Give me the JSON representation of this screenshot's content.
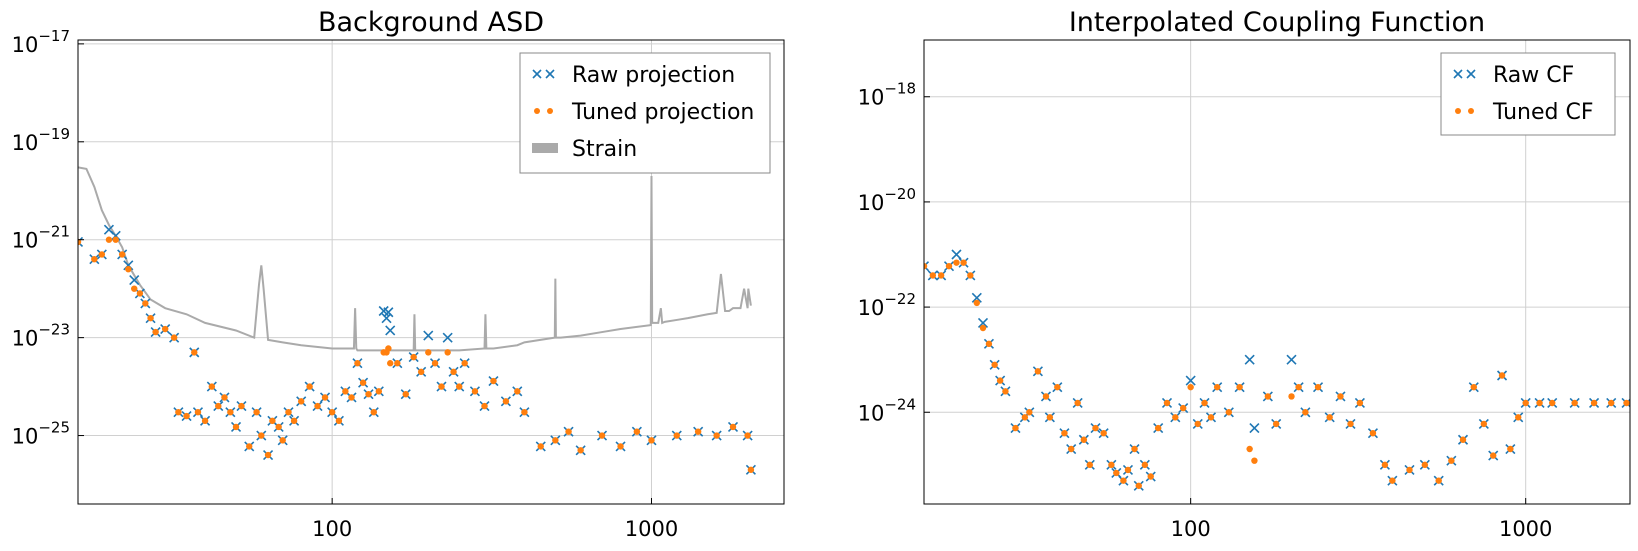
{
  "colors": {
    "raw": "#1f77b4",
    "tuned": "#ff7f0e",
    "strain": "#aaaaaa"
  },
  "chart_data": [
    {
      "type": "scatter",
      "title": "Background ASD",
      "xscale": "log",
      "yscale": "log",
      "xlim": [
        16,
        2600
      ],
      "ylim": [
        4e-27,
        1.2e-17
      ],
      "xticks": [
        100,
        1000
      ],
      "xtick_labels": [
        "100",
        "1000"
      ],
      "yticks": [
        {
          "base": "10",
          "exp": "−17",
          "value": 1e-17
        },
        {
          "base": "10",
          "exp": "−19",
          "value": 1e-19
        },
        {
          "base": "10",
          "exp": "−21",
          "value": 1e-21
        },
        {
          "base": "10",
          "exp": "−23",
          "value": 1e-23
        },
        {
          "base": "10",
          "exp": "−25",
          "value": 1e-25
        }
      ],
      "grid": true,
      "legend_position": "top-right",
      "legend": [
        {
          "label": "Raw projection",
          "marker": "x",
          "color": "#1f77b4"
        },
        {
          "label": "Tuned projection",
          "marker": "dot",
          "color": "#ff7f0e"
        },
        {
          "label": "Strain",
          "marker": "band",
          "color": "#aaaaaa"
        }
      ],
      "series": [
        {
          "name": "Strain",
          "kind": "line",
          "x": [
            16,
            17,
            18,
            19,
            20,
            21,
            22,
            23,
            25,
            27,
            30,
            35,
            40,
            50,
            57,
            59,
            60,
            61,
            63,
            70,
            80,
            100,
            117,
            118,
            119,
            120,
            150,
            170,
            180,
            181,
            182,
            185,
            200,
            250,
            300,
            302,
            304,
            320,
            380,
            400,
            498,
            500,
            502,
            520,
            600,
            700,
            800,
            995,
            1000,
            1005,
            1050,
            1070,
            1080,
            1100,
            1200,
            1300,
            1500,
            1600,
            1650,
            1700,
            1750,
            1800,
            1900,
            1950,
            2000,
            2010,
            2048
          ],
          "y": [
            3e-20,
            2.8e-20,
            1.2e-20,
            4e-21,
            2e-21,
            1.2e-21,
            7e-22,
            3e-22,
            1.2e-22,
            6e-23,
            4e-23,
            3e-23,
            2e-23,
            1.4e-23,
            1e-23,
            1.2e-22,
            3e-22,
            1e-22,
            9e-24,
            8e-24,
            7e-24,
            6e-24,
            6e-24,
            4e-23,
            6e-24,
            5.5e-24,
            5.5e-24,
            5.5e-24,
            5.5e-24,
            3e-23,
            5.5e-24,
            5.5e-24,
            5.5e-24,
            5.5e-24,
            6e-24,
            3e-23,
            6e-24,
            6e-24,
            7e-24,
            8e-24,
            1e-23,
            1.6e-22,
            1e-23,
            1e-23,
            1.1e-23,
            1.3e-23,
            1.5e-23,
            1.8e-23,
            2e-20,
            2e-23,
            2e-23,
            4e-23,
            2e-23,
            2.1e-23,
            2.3e-23,
            2.5e-23,
            3e-23,
            3.2e-23,
            2e-22,
            3.5e-23,
            3.5e-23,
            4e-23,
            4e-23,
            1e-22,
            4e-23,
            1e-22,
            4.5e-23
          ]
        },
        {
          "name": "Raw projection",
          "kind": "scatter",
          "marker": "x",
          "x": [
            16,
            18,
            19,
            20,
            21,
            22,
            23,
            24,
            25,
            26,
            27,
            28,
            30,
            32,
            33,
            35,
            37,
            38,
            40,
            42,
            44,
            46,
            48,
            50,
            52,
            55,
            58,
            60,
            63,
            65,
            68,
            70,
            73,
            76,
            80,
            85,
            90,
            95,
            100,
            105,
            110,
            115,
            120,
            125,
            130,
            135,
            140,
            145,
            148,
            150,
            152,
            160,
            170,
            180,
            190,
            200,
            210,
            220,
            230,
            240,
            250,
            260,
            280,
            300,
            320,
            350,
            380,
            400,
            450,
            500,
            550,
            600,
            700,
            800,
            900,
            1000,
            1200,
            1400,
            1600,
            1800,
            2000,
            2048
          ],
          "y": [
            9e-22,
            4e-22,
            5e-22,
            1.6e-21,
            1.2e-21,
            5e-22,
            3e-22,
            1.5e-22,
            8e-23,
            5e-23,
            2.5e-23,
            1.3e-23,
            1.5e-23,
            1e-23,
            3e-25,
            2.5e-25,
            5e-24,
            3e-25,
            2e-25,
            1e-24,
            4e-25,
            6e-25,
            3e-25,
            1.5e-25,
            4e-25,
            6e-26,
            3e-25,
            1e-25,
            4e-26,
            2e-25,
            1.5e-25,
            8e-26,
            3e-25,
            2e-25,
            5e-25,
            1e-24,
            4e-25,
            6e-25,
            3e-25,
            2e-25,
            8e-25,
            6e-25,
            3e-24,
            1.2e-24,
            7e-25,
            3e-25,
            8e-25,
            3.5e-23,
            2.5e-23,
            3.3e-23,
            1.4e-23,
            3e-24,
            7e-25,
            4e-24,
            2e-24,
            1.1e-23,
            3e-24,
            1e-24,
            1e-23,
            2e-24,
            1e-24,
            3e-24,
            8e-25,
            4e-25,
            1.3e-24,
            5e-25,
            8e-25,
            3e-25,
            6e-26,
            8e-26,
            1.2e-25,
            5e-26,
            1e-25,
            6e-26,
            1.2e-25,
            8e-26,
            1e-25,
            1.2e-25,
            1e-25,
            1.5e-25,
            1e-25,
            2e-26
          ]
        },
        {
          "name": "Tuned projection",
          "kind": "scatter",
          "marker": "dot",
          "x": [
            16,
            18,
            19,
            20,
            21,
            22,
            23,
            24,
            25,
            26,
            27,
            28,
            30,
            32,
            33,
            35,
            37,
            38,
            40,
            42,
            44,
            46,
            48,
            50,
            52,
            55,
            58,
            60,
            63,
            65,
            68,
            70,
            73,
            76,
            80,
            85,
            90,
            95,
            100,
            105,
            110,
            115,
            120,
            125,
            130,
            135,
            140,
            145,
            148,
            150,
            152,
            160,
            170,
            180,
            190,
            200,
            210,
            220,
            230,
            240,
            250,
            260,
            280,
            300,
            320,
            350,
            380,
            400,
            450,
            500,
            550,
            600,
            700,
            800,
            900,
            1000,
            1200,
            1400,
            1600,
            1800,
            2000,
            2048
          ],
          "y": [
            9e-22,
            4e-22,
            5e-22,
            1e-21,
            1e-21,
            5e-22,
            2.5e-22,
            1e-22,
            8e-23,
            5e-23,
            2.5e-23,
            1.3e-23,
            1.5e-23,
            1e-23,
            3e-25,
            2.5e-25,
            5e-24,
            3e-25,
            2e-25,
            1e-24,
            4e-25,
            6e-25,
            3e-25,
            1.5e-25,
            4e-25,
            6e-26,
            3e-25,
            1e-25,
            4e-26,
            2e-25,
            1.5e-25,
            8e-26,
            3e-25,
            2e-25,
            5e-25,
            1e-24,
            4e-25,
            6e-25,
            3e-25,
            2e-25,
            8e-25,
            6e-25,
            3e-24,
            1.2e-24,
            7e-25,
            3e-25,
            8e-25,
            5e-24,
            5e-24,
            6e-24,
            3e-24,
            3e-24,
            7e-25,
            4e-24,
            2e-24,
            5e-24,
            3e-24,
            1e-24,
            5e-24,
            2e-24,
            1e-24,
            3e-24,
            8e-25,
            4e-25,
            1.3e-24,
            5e-25,
            8e-25,
            3e-25,
            6e-26,
            8e-26,
            1.2e-25,
            5e-26,
            1e-25,
            6e-26,
            1.2e-25,
            8e-26,
            1e-25,
            1.2e-25,
            1e-25,
            1.5e-25,
            1e-25,
            2e-26
          ]
        }
      ]
    },
    {
      "type": "scatter",
      "title": "Interpolated Coupling Function",
      "xscale": "log",
      "yscale": "log",
      "xlim": [
        16,
        2048
      ],
      "ylim": [
        1.8e-26,
        1.2e-17
      ],
      "xticks": [
        100,
        1000
      ],
      "xtick_labels": [
        "100",
        "1000"
      ],
      "yticks": [
        {
          "base": "10",
          "exp": "−18",
          "value": 1e-18
        },
        {
          "base": "10",
          "exp": "−20",
          "value": 1e-20
        },
        {
          "base": "10",
          "exp": "−22",
          "value": 1e-22
        },
        {
          "base": "10",
          "exp": "−24",
          "value": 1e-24
        }
      ],
      "grid": true,
      "legend_position": "top-right",
      "legend": [
        {
          "label": "Raw CF",
          "marker": "x",
          "color": "#1f77b4"
        },
        {
          "label": "Tuned CF",
          "marker": "dot",
          "color": "#ff7f0e"
        }
      ],
      "series": [
        {
          "name": "Raw CF",
          "kind": "scatter",
          "marker": "x",
          "x": [
            16,
            17,
            18,
            19,
            20,
            21,
            22,
            23,
            24,
            25,
            26,
            27,
            28,
            30,
            32,
            33,
            35,
            37,
            38,
            40,
            42,
            44,
            46,
            48,
            50,
            52,
            55,
            58,
            60,
            63,
            65,
            68,
            70,
            73,
            76,
            80,
            85,
            90,
            95,
            100,
            105,
            110,
            115,
            120,
            130,
            140,
            150,
            155,
            170,
            180,
            200,
            210,
            220,
            240,
            260,
            280,
            300,
            320,
            350,
            380,
            400,
            450,
            500,
            550,
            600,
            650,
            700,
            750,
            800,
            850,
            900,
            950,
            1000,
            1100,
            1200,
            1400,
            1600,
            1800,
            2000
          ],
          "y": [
            6e-22,
            4e-22,
            4e-22,
            6e-22,
            1e-21,
            7e-22,
            4e-22,
            1.5e-22,
            5e-23,
            2e-23,
            8e-24,
            4e-24,
            2.5e-24,
            5e-25,
            8e-25,
            1e-24,
            6e-24,
            2e-24,
            8e-25,
            3e-24,
            4e-25,
            2e-25,
            1.5e-24,
            3e-25,
            1e-25,
            5e-25,
            4e-25,
            1e-25,
            7e-26,
            5e-26,
            8e-26,
            2e-25,
            4e-26,
            1e-25,
            6e-26,
            5e-25,
            1.5e-24,
            8e-25,
            1.2e-24,
            4e-24,
            6e-25,
            1.5e-24,
            8e-25,
            3e-24,
            1e-24,
            3e-24,
            1e-23,
            5e-25,
            2e-24,
            6e-25,
            1e-23,
            3e-24,
            1e-24,
            3e-24,
            8e-25,
            2e-24,
            6e-25,
            1.5e-24,
            4e-25,
            1e-25,
            5e-26,
            8e-26,
            1e-25,
            5e-26,
            1.2e-25,
            3e-25,
            3e-24,
            6e-25,
            1.5e-25,
            5e-24,
            2e-25,
            8e-25,
            1.5e-24,
            1.5e-24,
            1.5e-24,
            1.5e-24,
            1.5e-24,
            1.5e-24,
            1.5e-24
          ]
        },
        {
          "name": "Tuned CF",
          "kind": "scatter",
          "marker": "dot",
          "x": [
            16,
            17,
            18,
            19,
            20,
            21,
            22,
            23,
            24,
            25,
            26,
            27,
            28,
            30,
            32,
            33,
            35,
            37,
            38,
            40,
            42,
            44,
            46,
            48,
            50,
            52,
            55,
            58,
            60,
            63,
            65,
            68,
            70,
            73,
            76,
            80,
            85,
            90,
            95,
            100,
            105,
            110,
            115,
            120,
            130,
            140,
            150,
            155,
            170,
            180,
            200,
            210,
            220,
            240,
            260,
            280,
            300,
            320,
            350,
            380,
            400,
            450,
            500,
            550,
            600,
            650,
            700,
            750,
            800,
            850,
            900,
            950,
            1000,
            1100,
            1200,
            1400,
            1600,
            1800,
            2000
          ],
          "y": [
            6e-22,
            4e-22,
            4e-22,
            6e-22,
            7e-22,
            7e-22,
            4e-22,
            1.2e-22,
            4e-23,
            2e-23,
            8e-24,
            4e-24,
            2.5e-24,
            5e-25,
            8e-25,
            1e-24,
            6e-24,
            2e-24,
            8e-25,
            3e-24,
            4e-25,
            2e-25,
            1.5e-24,
            3e-25,
            1e-25,
            5e-25,
            4e-25,
            1e-25,
            7e-26,
            5e-26,
            8e-26,
            2e-25,
            4e-26,
            1e-25,
            6e-26,
            5e-25,
            1.5e-24,
            8e-25,
            1.2e-24,
            3e-24,
            6e-25,
            1.5e-24,
            8e-25,
            3e-24,
            1e-24,
            3e-24,
            2e-25,
            1.2e-25,
            2e-24,
            6e-25,
            2e-24,
            3e-24,
            1e-24,
            3e-24,
            8e-25,
            2e-24,
            6e-25,
            1.5e-24,
            4e-25,
            1e-25,
            5e-26,
            8e-26,
            1e-25,
            5e-26,
            1.2e-25,
            3e-25,
            3e-24,
            6e-25,
            1.5e-25,
            5e-24,
            2e-25,
            8e-25,
            1.5e-24,
            1.5e-24,
            1.5e-24,
            1.5e-24,
            1.5e-24,
            1.5e-24,
            1.5e-24
          ]
        }
      ]
    }
  ]
}
